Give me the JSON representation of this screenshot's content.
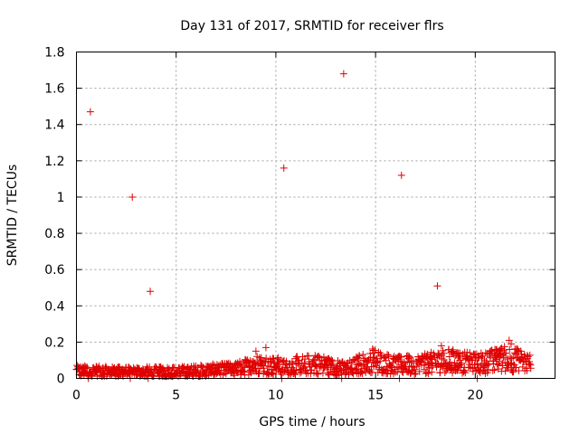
{
  "chart_data": {
    "type": "scatter",
    "title": "Day 131 of 2017, SRMTID for receiver flrs",
    "xlabel": "GPS time / hours",
    "ylabel": "SRMTID / TECUs",
    "xlim": [
      0,
      24
    ],
    "ylim": [
      0,
      1.8
    ],
    "xticks": [
      0,
      5,
      10,
      15,
      20
    ],
    "xtick_labels": [
      "0",
      "5",
      "10",
      "15",
      "20"
    ],
    "yticks": [
      0,
      0.2,
      0.4,
      0.6,
      0.8,
      1.0,
      1.2,
      1.4,
      1.6,
      1.8
    ],
    "ytick_labels": [
      "0",
      "0.2",
      "0.4",
      "0.6",
      "0.8",
      "1",
      "1.2",
      "1.4",
      "1.6",
      "1.8"
    ],
    "grid": true,
    "marker": "+",
    "series": [
      {
        "name": "SRMTID",
        "color": "#e00000",
        "outliers": [
          {
            "x": 0.7,
            "y": 1.47
          },
          {
            "x": 2.8,
            "y": 1.0
          },
          {
            "x": 3.7,
            "y": 0.48
          },
          {
            "x": 10.4,
            "y": 1.16
          },
          {
            "x": 13.4,
            "y": 1.68
          },
          {
            "x": 16.3,
            "y": 1.12
          },
          {
            "x": 18.1,
            "y": 0.51
          },
          {
            "x": 0.6,
            "y": 0.0
          },
          {
            "x": 2.7,
            "y": 0.0
          },
          {
            "x": 3.6,
            "y": 0.0
          },
          {
            "x": 10.3,
            "y": 0.0
          },
          {
            "x": 13.3,
            "y": 0.0
          },
          {
            "x": 16.2,
            "y": 0.0
          },
          {
            "x": 20.1,
            "y": 0.0
          }
        ],
        "baseline": {
          "x_range": [
            0,
            22.8
          ],
          "step_hours": 0.03,
          "profile": [
            {
              "x": 0.0,
              "y": 0.04
            },
            {
              "x": 2.0,
              "y": 0.035
            },
            {
              "x": 5.0,
              "y": 0.035
            },
            {
              "x": 8.0,
              "y": 0.05
            },
            {
              "x": 9.0,
              "y": 0.075
            },
            {
              "x": 10.5,
              "y": 0.065
            },
            {
              "x": 12.0,
              "y": 0.08
            },
            {
              "x": 13.5,
              "y": 0.05
            },
            {
              "x": 14.8,
              "y": 0.1
            },
            {
              "x": 16.0,
              "y": 0.07
            },
            {
              "x": 17.5,
              "y": 0.08
            },
            {
              "x": 18.5,
              "y": 0.1
            },
            {
              "x": 20.0,
              "y": 0.08
            },
            {
              "x": 21.7,
              "y": 0.11
            },
            {
              "x": 22.8,
              "y": 0.08
            }
          ],
          "spikes": [
            {
              "x": 9.0,
              "y": 0.15
            },
            {
              "x": 9.5,
              "y": 0.17
            },
            {
              "x": 12.1,
              "y": 0.12
            },
            {
              "x": 14.9,
              "y": 0.14
            },
            {
              "x": 18.3,
              "y": 0.18
            },
            {
              "x": 21.7,
              "y": 0.21
            },
            {
              "x": 21.8,
              "y": 0.19
            }
          ]
        }
      }
    ]
  }
}
